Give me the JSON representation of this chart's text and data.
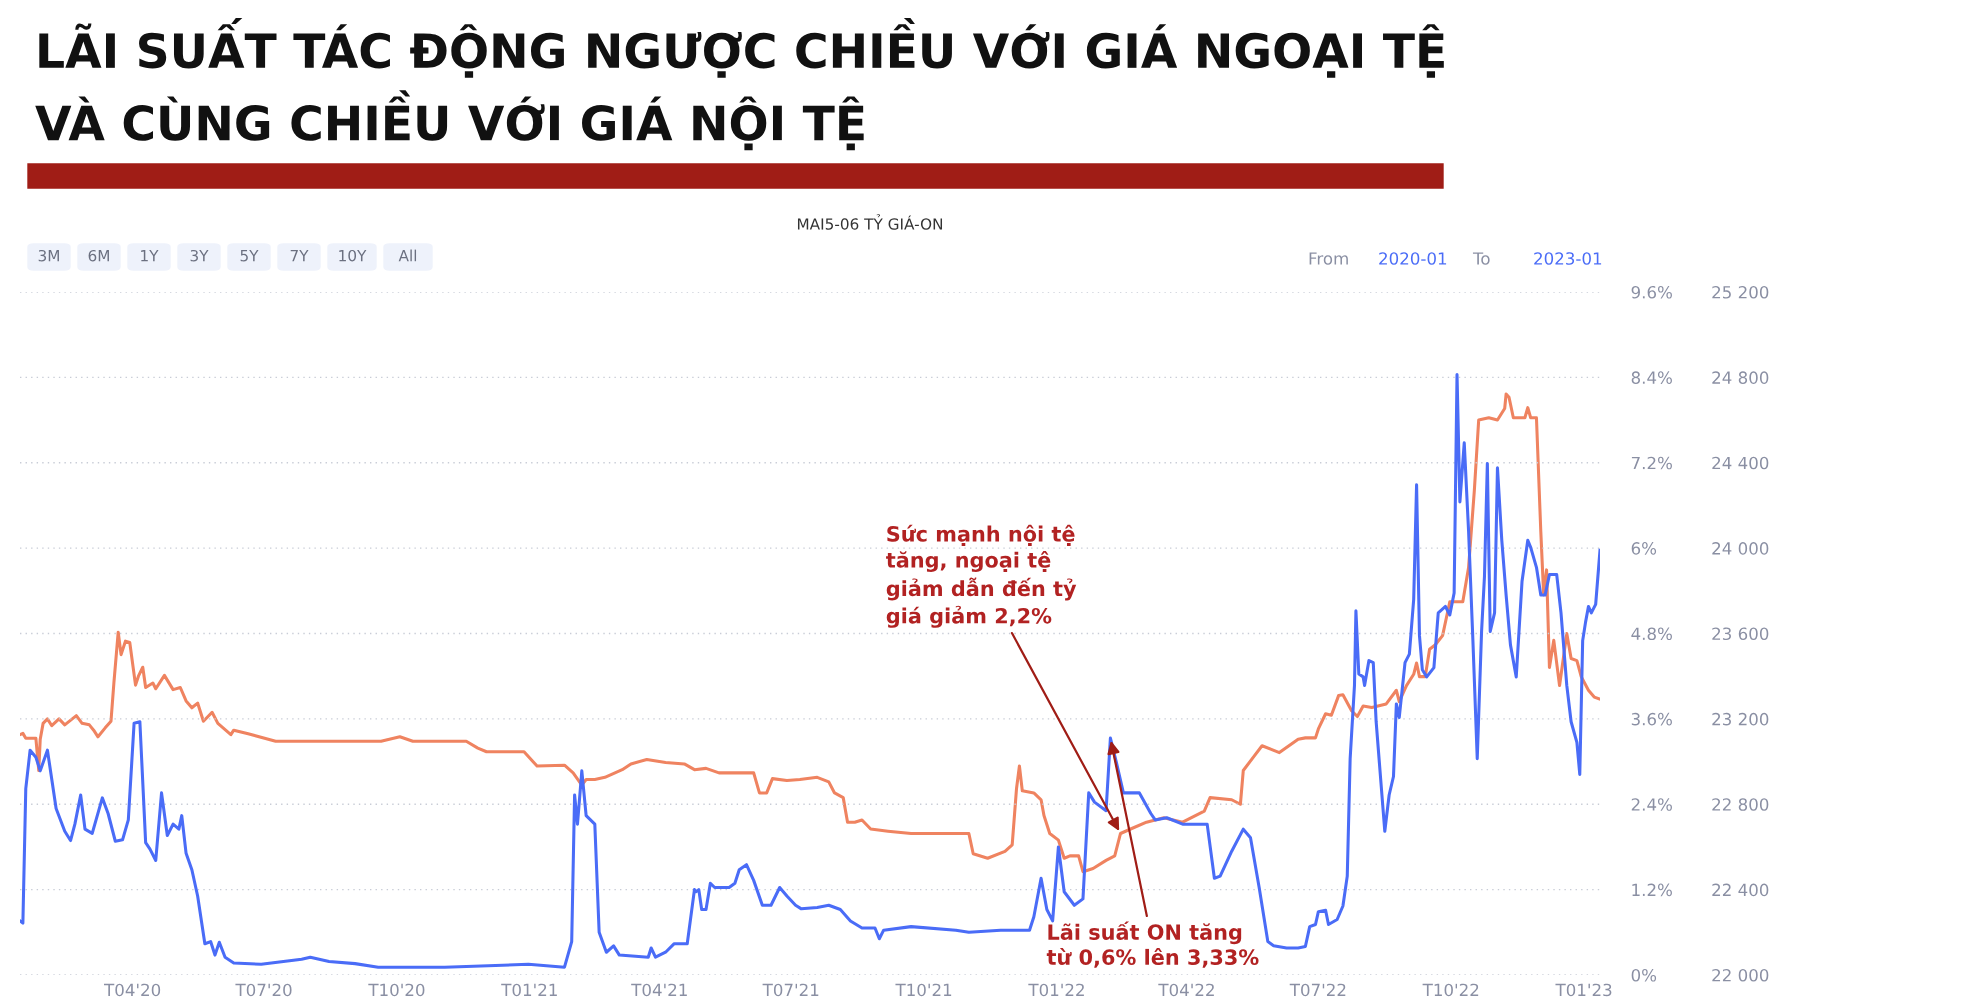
{
  "chart_data": {
    "type": "line",
    "title": "LÃI SUẤT TÁC ĐỘNG NGƯỢC CHIỀU VỚI GIÁ NGOẠI TỆ\nVÀ CÙNG CHIỀU VỚI GIÁ NỘI TỆ",
    "subtitle": "MAI5-06 TỶ GIÁ-ON",
    "annotations": [
      "3M",
      "6M",
      "1Y",
      "3Y",
      "5Y",
      "7Y",
      "10Y",
      "All",
      "From",
      "2020-01",
      "To",
      "2023-01",
      {
        "text": "Sức mạnh nội tệ\ntăng, ngoại tệ\ngiảm dẫn đến tỷ\ngiá giảm 2,2%",
        "x": "2022-02-14",
        "y": 1.99
      },
      {
        "text": "Lãi suất ON tăng\ntừ 0,6% lên 3,33%",
        "x": "2022-02-07",
        "y": 3.33
      }
    ],
    "xlim": [
      "2020-01-14",
      "2023-01-12"
    ],
    "xticks": [
      {
        "value": "2020-04-01",
        "label": "T04'20"
      },
      {
        "value": "2020-07-01",
        "label": "T07'20"
      },
      {
        "value": "2020-10-01",
        "label": "T10'20"
      },
      {
        "value": "2021-01-01",
        "label": "T01'21"
      },
      {
        "value": "2021-04-01",
        "label": "T04'21"
      },
      {
        "value": "2021-07-01",
        "label": "T07'21"
      },
      {
        "value": "2021-10-01",
        "label": "T10'21"
      },
      {
        "value": "2022-01-01",
        "label": "T01'22"
      },
      {
        "value": "2022-04-01",
        "label": "T04'22"
      },
      {
        "value": "2022-07-01",
        "label": "T07'22"
      },
      {
        "value": "2022-10-01",
        "label": "T10'22"
      },
      {
        "value": "2023-01-01",
        "label": "T01'23"
      }
    ],
    "ylim": [
      0,
      9.6
    ],
    "yticks": [
      {
        "value": 0,
        "label": "0%"
      },
      {
        "value": 1.2,
        "label": "1.2%"
      },
      {
        "value": 2.4,
        "label": "2.4%"
      },
      {
        "value": 3.6,
        "label": "3.6%"
      },
      {
        "value": 4.8,
        "label": "4.8%"
      },
      {
        "value": 6,
        "label": "6%"
      },
      {
        "value": 7.2,
        "label": "7.2%"
      },
      {
        "value": 8.4,
        "label": "8.4%"
      },
      {
        "value": 9.6,
        "label": "9.6%"
      }
    ],
    "y2lim": [
      22000,
      25200
    ],
    "y2ticks": [
      {
        "value": 22000,
        "label": "22 000"
      },
      {
        "value": 22400,
        "label": "22 400"
      },
      {
        "value": 22800,
        "label": "22 800"
      },
      {
        "value": 23200,
        "label": "23 200"
      },
      {
        "value": 23600,
        "label": "23 600"
      },
      {
        "value": 24000,
        "label": "24 000"
      },
      {
        "value": 24400,
        "label": "24 400"
      },
      {
        "value": 24800,
        "label": "24 800"
      },
      {
        "value": 25200,
        "label": "25 200"
      }
    ],
    "grid": "y",
    "legend": false,
    "marker": "none",
    "line_style": "solid",
    "series": [
      {
        "color": "#4a6cf7",
        "x": [
          "2020-01-14",
          "2020-01-16",
          "2020-01-18",
          "2020-01-21",
          "2020-01-25",
          "2020-01-28",
          "2020-02-02",
          "2020-02-08",
          "2020-02-14",
          "2020-02-18",
          "2020-02-21",
          "2020-02-25",
          "2020-02-28",
          "2020-03-04",
          "2020-03-11",
          "2020-03-15",
          "2020-03-20",
          "2020-03-25",
          "2020-03-29",
          "2020-04-02",
          "2020-04-06",
          "2020-04-10",
          "2020-04-13",
          "2020-04-17",
          "2020-04-21",
          "2020-04-25",
          "2020-04-29",
          "2020-05-03",
          "2020-05-05",
          "2020-05-08",
          "2020-05-12",
          "2020-05-16",
          "2020-05-21",
          "2020-05-25",
          "2020-05-28",
          "2020-05-31",
          "2020-06-04",
          "2020-06-10",
          "2020-06-29",
          "2020-07-27",
          "2020-08-02",
          "2020-08-15",
          "2020-09-02",
          "2020-09-18",
          "2020-11-03",
          "2020-12-31",
          "2021-01-25",
          "2021-01-30",
          "2021-02-01",
          "2021-02-03",
          "2021-02-06",
          "2021-02-09",
          "2021-02-15",
          "2021-02-18",
          "2021-02-23",
          "2021-02-28",
          "2021-03-04",
          "2021-03-24",
          "2021-03-26",
          "2021-03-29",
          "2021-04-05",
          "2021-04-11",
          "2021-04-20",
          "2021-04-25",
          "2021-04-26",
          "2021-04-28",
          "2021-04-30",
          "2021-05-03",
          "2021-05-06",
          "2021-05-09",
          "2021-05-19",
          "2021-05-23",
          "2021-05-26",
          "2021-05-31",
          "2021-06-05",
          "2021-06-11",
          "2021-06-17",
          "2021-06-23",
          "2021-06-28",
          "2021-07-04",
          "2021-07-08",
          "2021-07-19",
          "2021-07-27",
          "2021-08-04",
          "2021-08-11",
          "2021-08-19",
          "2021-08-28",
          "2021-08-31",
          "2021-09-03",
          "2021-09-22",
          "2021-10-23",
          "2021-11-01",
          "2021-11-23",
          "2021-12-13",
          "2021-12-16",
          "2021-12-21",
          "2021-12-25",
          "2021-12-29",
          "2022-01-02",
          "2022-01-06",
          "2022-01-13",
          "2022-01-19",
          "2022-01-23",
          "2022-01-27",
          "2022-02-04",
          "2022-02-07",
          "2022-02-11",
          "2022-02-16",
          "2022-02-27",
          "2022-03-07",
          "2022-03-10",
          "2022-03-18",
          "2022-03-29",
          "2022-04-15",
          "2022-04-20",
          "2022-04-24",
          "2022-05-02",
          "2022-05-10",
          "2022-05-15",
          "2022-05-21",
          "2022-05-27",
          "2022-05-31",
          "2022-06-09",
          "2022-06-17",
          "2022-06-22",
          "2022-06-25",
          "2022-06-29",
          "2022-07-01",
          "2022-07-06",
          "2022-07-08",
          "2022-07-14",
          "2022-07-18",
          "2022-07-21",
          "2022-07-23",
          "2022-07-26",
          "2022-07-27",
          "2022-07-29",
          "2022-08-01",
          "2022-08-02",
          "2022-08-05",
          "2022-08-08",
          "2022-08-10",
          "2022-08-14",
          "2022-08-16",
          "2022-08-19",
          "2022-08-22",
          "2022-08-24",
          "2022-08-26",
          "2022-08-30",
          "2022-09-02",
          "2022-09-05",
          "2022-09-07",
          "2022-09-09",
          "2022-09-11",
          "2022-09-14",
          "2022-09-19",
          "2022-09-22",
          "2022-09-27",
          "2022-09-30",
          "2022-10-03",
          "2022-10-05",
          "2022-10-07",
          "2022-10-10",
          "2022-10-13",
          "2022-10-16",
          "2022-10-19",
          "2022-10-22",
          "2022-10-24",
          "2022-10-26",
          "2022-10-28",
          "2022-10-31",
          "2022-11-02",
          "2022-11-05",
          "2022-11-08",
          "2022-11-11",
          "2022-11-15",
          "2022-11-19",
          "2022-11-23",
          "2022-11-25",
          "2022-11-29",
          "2022-12-02",
          "2022-12-05",
          "2022-12-08",
          "2022-12-13",
          "2022-12-16",
          "2022-12-20",
          "2022-12-23",
          "2022-12-27",
          "2022-12-29",
          "2022-12-31",
          "2023-01-02",
          "2023-01-04",
          "2023-01-06",
          "2023-01-09",
          "2023-01-12"
        ],
        "values": [
          0.76,
          0.73,
          2.62,
          3.16,
          3.06,
          2.87,
          3.16,
          2.34,
          2.02,
          1.89,
          2.12,
          2.53,
          2.05,
          1.99,
          2.49,
          2.27,
          1.88,
          1.9,
          2.18,
          3.54,
          3.56,
          1.86,
          1.77,
          1.61,
          2.56,
          1.96,
          2.12,
          2.05,
          2.24,
          1.71,
          1.48,
          1.11,
          0.44,
          0.47,
          0.28,
          0.46,
          0.25,
          0.17,
          0.15,
          0.22,
          0.25,
          0.19,
          0.16,
          0.11,
          0.11,
          0.15,
          0.11,
          0.47,
          2.53,
          2.12,
          2.87,
          2.24,
          2.12,
          0.6,
          0.32,
          0.41,
          0.28,
          0.25,
          0.38,
          0.25,
          0.32,
          0.44,
          0.44,
          1.2,
          1.17,
          1.2,
          0.92,
          0.92,
          1.29,
          1.23,
          1.23,
          1.29,
          1.48,
          1.55,
          1.33,
          0.98,
          0.98,
          1.23,
          1.11,
          0.98,
          0.93,
          0.95,
          0.98,
          0.92,
          0.76,
          0.66,
          0.66,
          0.51,
          0.63,
          0.68,
          0.63,
          0.6,
          0.63,
          0.63,
          0.82,
          1.36,
          0.92,
          0.76,
          1.8,
          1.17,
          0.98,
          1.07,
          2.56,
          2.43,
          2.31,
          3.33,
          3.0,
          2.56,
          2.56,
          2.27,
          2.18,
          2.21,
          2.12,
          2.12,
          1.36,
          1.39,
          1.74,
          2.05,
          1.93,
          1.23,
          0.47,
          0.41,
          0.38,
          0.38,
          0.4,
          0.68,
          0.71,
          0.89,
          0.91,
          0.71,
          0.78,
          0.97,
          1.39,
          3.04,
          4.07,
          5.12,
          4.23,
          4.19,
          4.07,
          4.42,
          4.39,
          3.56,
          2.53,
          2.02,
          2.53,
          2.79,
          3.81,
          3.62,
          4.39,
          4.51,
          5.28,
          6.89,
          4.77,
          4.29,
          4.19,
          4.32,
          5.09,
          5.18,
          5.06,
          5.37,
          8.44,
          6.65,
          7.48,
          6.24,
          4.7,
          3.04,
          4.83,
          5.6,
          7.19,
          4.83,
          5.09,
          7.13,
          6.11,
          5.34,
          4.64,
          4.19,
          5.53,
          6.11,
          6.01,
          5.73,
          5.34,
          5.34,
          5.63,
          5.63,
          5.09,
          4.07,
          3.56,
          3.27,
          2.82,
          4.7,
          4.96,
          5.18,
          5.09,
          5.21,
          5.97
        ]
      },
      {
        "color": "#ef8360",
        "axis": "y2",
        "x": [
          "2020-01-14",
          "2020-01-16",
          "2020-01-18",
          "2020-01-25",
          "2020-01-27",
          "2020-01-28",
          "2020-01-30",
          "2020-02-02",
          "2020-02-05",
          "2020-02-10",
          "2020-02-14",
          "2020-02-22",
          "2020-02-26",
          "2020-03-02",
          "2020-03-05",
          "2020-03-08",
          "2020-03-13",
          "2020-03-17",
          "2020-03-19",
          "2020-03-22",
          "2020-03-24",
          "2020-03-27",
          "2020-03-30",
          "2020-04-03",
          "2020-04-05",
          "2020-04-08",
          "2020-04-10",
          "2020-04-15",
          "2020-04-17",
          "2020-04-23",
          "2020-04-29",
          "2020-05-04",
          "2020-05-08",
          "2020-05-12",
          "2020-05-16",
          "2020-05-20",
          "2020-05-26",
          "2020-05-30",
          "2020-06-08",
          "2020-06-10",
          "2020-06-20",
          "2020-07-09",
          "2020-07-21",
          "2020-09-20",
          "2020-10-03",
          "2020-10-12",
          "2020-11-18",
          "2020-11-26",
          "2020-12-02",
          "2020-12-28",
          "2021-01-06",
          "2021-01-25",
          "2021-01-31",
          "2021-02-06",
          "2021-02-09",
          "2021-02-15",
          "2021-02-22",
          "2021-03-06",
          "2021-03-12",
          "2021-03-23",
          "2021-04-05",
          "2021-04-18",
          "2021-04-25",
          "2021-05-03",
          "2021-05-12",
          "2021-05-28",
          "2021-06-05",
          "2021-06-09",
          "2021-06-14",
          "2021-06-18",
          "2021-06-28",
          "2021-07-07",
          "2021-07-19",
          "2021-07-27",
          "2021-07-31",
          "2021-08-06",
          "2021-08-09",
          "2021-08-14",
          "2021-08-19",
          "2021-08-25",
          "2021-09-06",
          "2021-09-22",
          "2021-11-01",
          "2021-11-04",
          "2021-11-14",
          "2021-11-26",
          "2021-12-01",
          "2021-12-04",
          "2021-12-06",
          "2021-12-08",
          "2021-12-16",
          "2021-12-21",
          "2021-12-23",
          "2021-12-27",
          "2022-01-02",
          "2022-01-06",
          "2022-01-10",
          "2022-01-16",
          "2022-01-19",
          "2022-01-26",
          "2022-02-04",
          "2022-02-10",
          "2022-02-14",
          "2022-02-21",
          "2022-03-04",
          "2022-03-16",
          "2022-03-29",
          "2022-04-13",
          "2022-04-17",
          "2022-05-02",
          "2022-05-08",
          "2022-05-10",
          "2022-05-17",
          "2022-05-23",
          "2022-06-04",
          "2022-06-17",
          "2022-06-22",
          "2022-06-29",
          "2022-07-01",
          "2022-07-06",
          "2022-07-10",
          "2022-07-15",
          "2022-07-18",
          "2022-07-24",
          "2022-07-28",
          "2022-08-01",
          "2022-08-07",
          "2022-08-17",
          "2022-08-24",
          "2022-08-26",
          "2022-08-31",
          "2022-09-05",
          "2022-09-07",
          "2022-09-09",
          "2022-09-13",
          "2022-09-16",
          "2022-09-20",
          "2022-09-25",
          "2022-09-30",
          "2022-10-09",
          "2022-10-13",
          "2022-10-17",
          "2022-10-20",
          "2022-10-27",
          "2022-11-02",
          "2022-11-07",
          "2022-11-08",
          "2022-11-10",
          "2022-11-13",
          "2022-11-21",
          "2022-11-23",
          "2022-11-25",
          "2022-11-29",
          "2022-12-02",
          "2022-12-04",
          "2022-12-06",
          "2022-12-08",
          "2022-12-11",
          "2022-12-15",
          "2022-12-20",
          "2022-12-23",
          "2022-12-27",
          "2022-12-30",
          "2023-01-04",
          "2023-01-08",
          "2023-01-12"
        ],
        "values": [
          23126,
          23132,
          23109,
          23109,
          22958,
          23105,
          23179,
          23200,
          23168,
          23200,
          23172,
          23215,
          23179,
          23172,
          23147,
          23116,
          23158,
          23189,
          23368,
          23606,
          23501,
          23564,
          23558,
          23358,
          23400,
          23442,
          23347,
          23368,
          23341,
          23404,
          23337,
          23347,
          23284,
          23252,
          23274,
          23189,
          23231,
          23179,
          23126,
          23147,
          23130,
          23095,
          23095,
          23095,
          23116,
          23095,
          23095,
          23063,
          23046,
          23046,
          22979,
          22983,
          22947,
          22890,
          22916,
          22916,
          22926,
          22962,
          22989,
          23010,
          22996,
          22989,
          22962,
          22968,
          22947,
          22947,
          22947,
          22853,
          22853,
          22920,
          22911,
          22916,
          22926,
          22905,
          22853,
          22831,
          22716,
          22716,
          22726,
          22684,
          22674,
          22663,
          22663,
          22568,
          22547,
          22579,
          22610,
          22874,
          22979,
          22863,
          22853,
          22821,
          22747,
          22663,
          22632,
          22547,
          22558,
          22558,
          22484,
          22499,
          22537,
          22558,
          22663,
          22684,
          22716,
          22737,
          22716,
          22768,
          22831,
          22821,
          22800,
          22958,
          23021,
          23074,
          23042,
          23105,
          23111,
          23111,
          23153,
          23224,
          23217,
          23309,
          23313,
          23238,
          23211,
          23260,
          23253,
          23270,
          23334,
          23281,
          23356,
          23409,
          23462,
          23398,
          23398,
          23526,
          23547,
          23590,
          23749,
          23749,
          23909,
          24271,
          24600,
          24611,
          24600,
          24654,
          24722,
          24707,
          24611,
          24611,
          24658,
          24611,
          24611,
          24079,
          23781,
          23898,
          23441,
          23568,
          23356,
          23600,
          23483,
          23473,
          23398,
          23334,
          23302,
          23292
        ]
      }
    ]
  }
}
